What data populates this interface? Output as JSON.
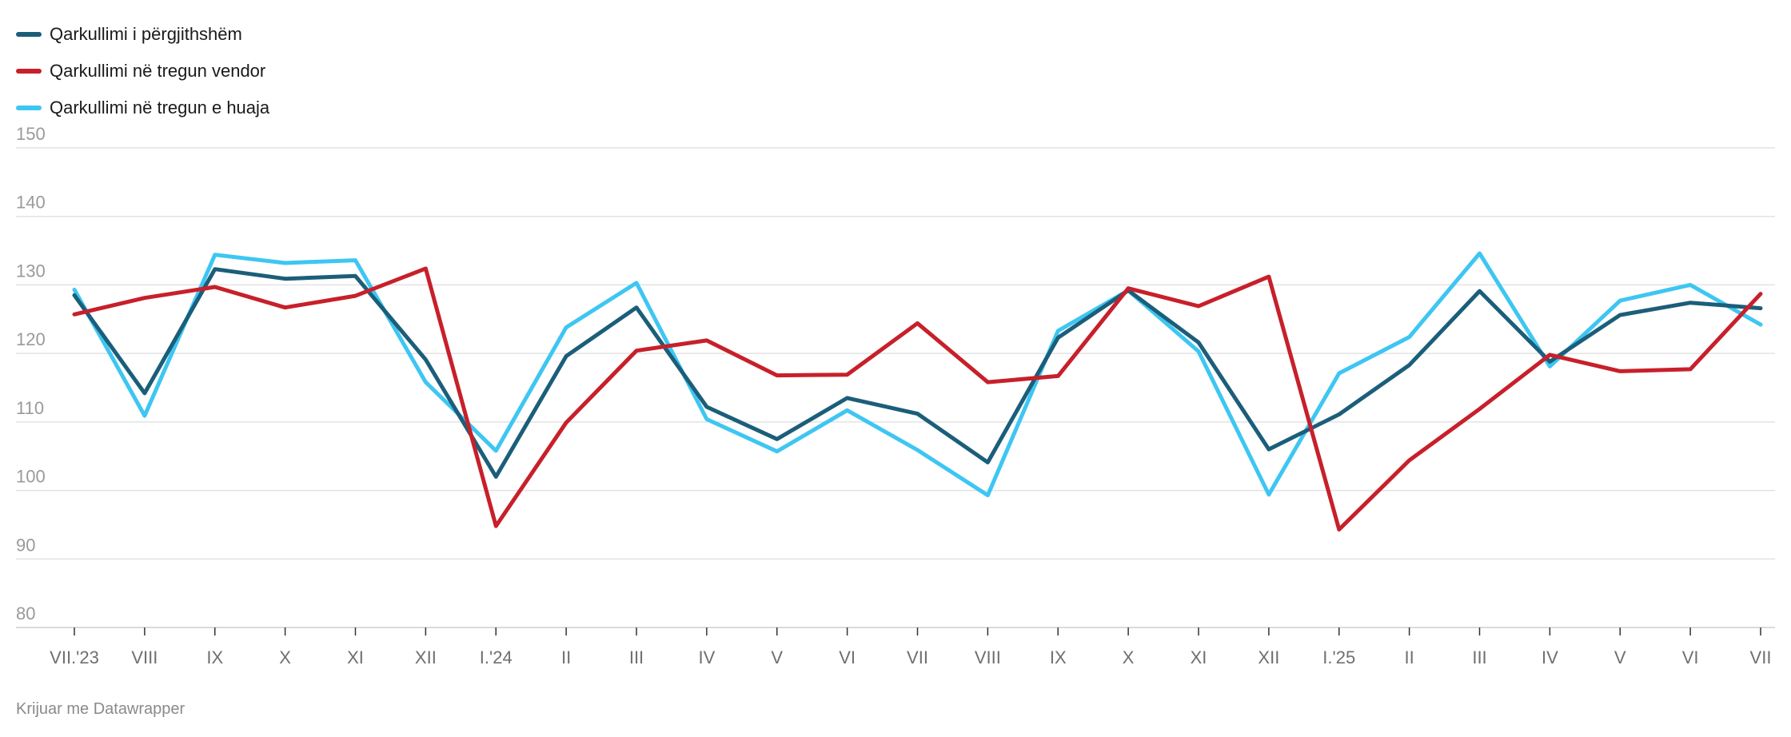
{
  "footer": "Krijuar me Datawrapper",
  "chart_data": {
    "type": "line",
    "categories": [
      "VII.'23",
      "VIII",
      "IX",
      "X",
      "XI",
      "XII",
      "I.'24",
      "II",
      "III",
      "IV",
      "V",
      "VI",
      "VII",
      "VIII",
      "IX",
      "X",
      "XI",
      "XII",
      "I.'25",
      "II",
      "III",
      "IV",
      "V",
      "VI",
      "VII"
    ],
    "series": [
      {
        "name": "Qarkullimi i përgjithshëm",
        "color": "#1b5e7a",
        "values": [
          128.5,
          114.2,
          132.3,
          130.9,
          131.3,
          119.1,
          102.0,
          119.6,
          126.7,
          112.2,
          107.5,
          113.5,
          111.2,
          104.1,
          122.3,
          129.2,
          121.6,
          106.0,
          111.1,
          118.3,
          129.1,
          118.8,
          125.6,
          127.4,
          126.6
        ]
      },
      {
        "name": "Qarkullimi në tregun vendor",
        "color": "#c7202b",
        "values": [
          125.7,
          128.1,
          129.7,
          126.7,
          128.4,
          132.4,
          94.8,
          109.9,
          120.4,
          121.9,
          116.8,
          116.9,
          124.4,
          115.8,
          116.7,
          129.5,
          126.9,
          131.2,
          94.3,
          104.4,
          111.9,
          119.8,
          117.4,
          117.7,
          128.7
        ]
      },
      {
        "name": "Qarkullimi në tregun e huaja",
        "color": "#3ec6f2",
        "values": [
          129.3,
          110.9,
          134.4,
          133.2,
          133.6,
          115.8,
          105.8,
          123.8,
          130.3,
          110.4,
          105.7,
          111.7,
          105.9,
          99.3,
          123.3,
          129.2,
          120.3,
          99.4,
          117.1,
          122.4,
          134.6,
          118.1,
          127.7,
          130.0,
          124.2
        ]
      }
    ],
    "yticks": [
      80,
      90,
      100,
      110,
      120,
      130,
      140,
      150
    ],
    "ylim": [
      80,
      150
    ],
    "grid": true,
    "legend_position": "top-left",
    "title": "",
    "xlabel": "",
    "ylabel": ""
  }
}
